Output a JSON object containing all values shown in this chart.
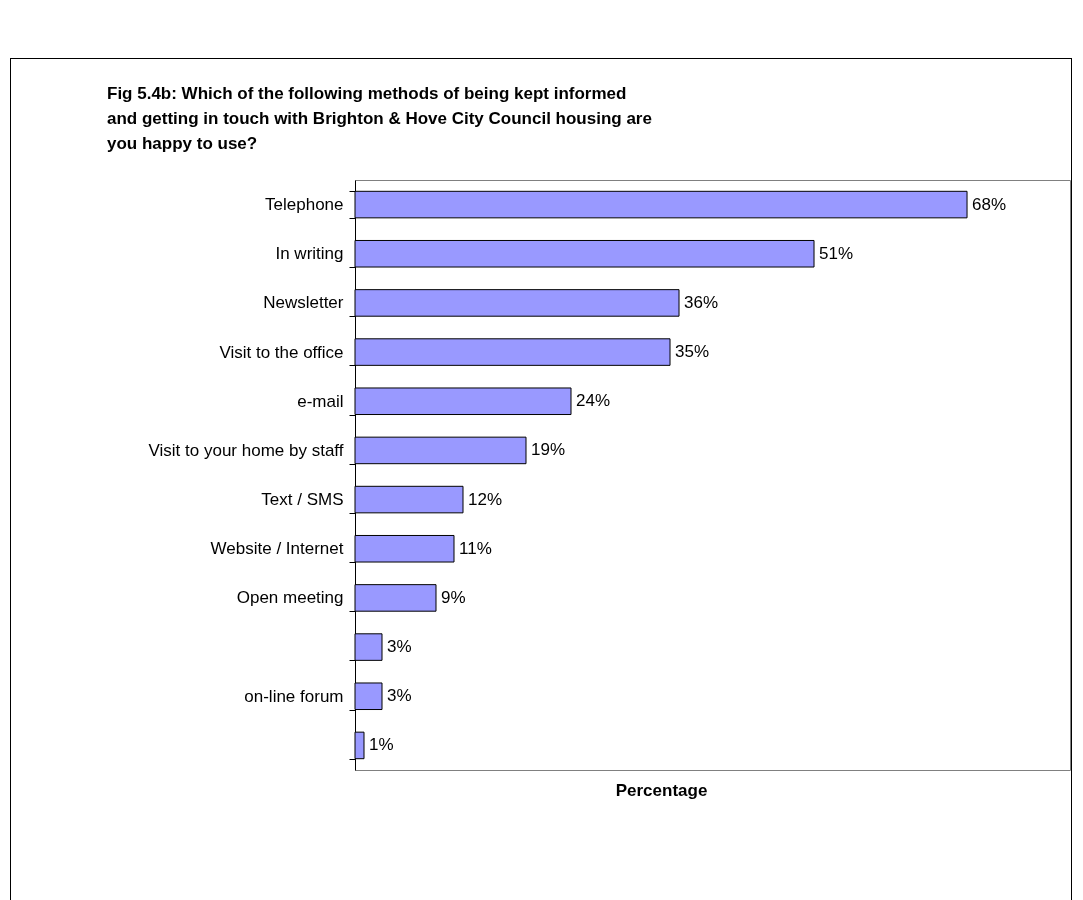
{
  "chart_data": {
    "type": "bar",
    "orientation": "horizontal",
    "title": "Fig 5.4b:  Which of the following methods of being kept informed and getting in touch with Brighton & Hove City Council housing are you happy to use?",
    "xlabel": "Percentage",
    "categories": [
      "Telephone",
      "In writing",
      "Newsletter",
      "Visit to the office",
      "e-mail",
      "Visit to your home by staff",
      "Text / SMS",
      "Website / Internet",
      "Open meeting",
      null,
      "on-line forum",
      null
    ],
    "values": [
      68,
      51,
      36,
      35,
      24,
      19,
      12,
      11,
      9,
      3,
      3,
      1
    ],
    "value_labels": [
      "68%",
      "51%",
      "36%",
      "35%",
      "24%",
      "19%",
      "12%",
      "11%",
      "9%",
      "3%",
      "3%",
      "1%"
    ],
    "color": "#9999ff"
  }
}
